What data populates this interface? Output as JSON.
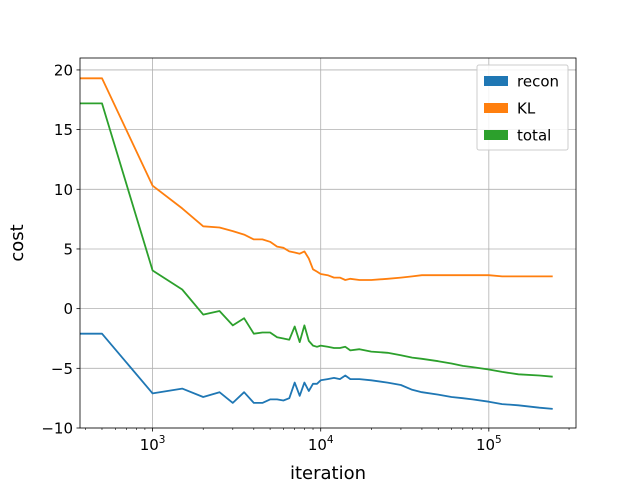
{
  "chart_data": {
    "type": "line",
    "title": "",
    "xlabel": "iteration",
    "ylabel": "cost",
    "xscale": "log",
    "xlim": [
      370,
      330000
    ],
    "ylim": [
      -10,
      21
    ],
    "grid": true,
    "legend_position": "top-right",
    "x_ticks": [
      {
        "value": 1000,
        "base": "10",
        "exp": "3"
      },
      {
        "value": 10000,
        "base": "10",
        "exp": "4"
      },
      {
        "value": 100000,
        "base": "10",
        "exp": "5"
      }
    ],
    "y_ticks": [
      {
        "value": -10,
        "label": "−10"
      },
      {
        "value": -5,
        "label": "−5"
      },
      {
        "value": 0,
        "label": "0"
      },
      {
        "value": 5,
        "label": "5"
      },
      {
        "value": 10,
        "label": "10"
      },
      {
        "value": 15,
        "label": "15"
      },
      {
        "value": 20,
        "label": "20"
      }
    ],
    "series": [
      {
        "name": "recon",
        "color": "#1f77b4",
        "x": [
          370,
          500,
          1000,
          1500,
          2000,
          2500,
          3000,
          3500,
          4000,
          4500,
          5000,
          5500,
          6000,
          6500,
          7000,
          7500,
          8000,
          8500,
          9000,
          9500,
          10000,
          11000,
          12000,
          13000,
          14000,
          15000,
          17000,
          20000,
          25000,
          30000,
          35000,
          40000,
          50000,
          60000,
          70000,
          80000,
          100000,
          120000,
          150000,
          200000,
          240000
        ],
        "y": [
          -2.1,
          -2.1,
          -7.1,
          -6.7,
          -7.4,
          -7.0,
          -7.9,
          -7.0,
          -7.9,
          -7.9,
          -7.6,
          -7.6,
          -7.7,
          -7.5,
          -6.2,
          -7.3,
          -6.2,
          -6.9,
          -6.3,
          -6.3,
          -6.0,
          -5.9,
          -5.8,
          -5.9,
          -5.6,
          -5.9,
          -5.9,
          -6.0,
          -6.2,
          -6.4,
          -6.8,
          -7.0,
          -7.2,
          -7.4,
          -7.5,
          -7.6,
          -7.8,
          -8.0,
          -8.1,
          -8.3,
          -8.4
        ]
      },
      {
        "name": "KL",
        "color": "#ff7f0e",
        "x": [
          370,
          500,
          1000,
          1500,
          2000,
          2500,
          3000,
          3500,
          4000,
          4500,
          5000,
          5500,
          6000,
          6500,
          7000,
          7500,
          8000,
          8500,
          9000,
          9500,
          10000,
          11000,
          12000,
          13000,
          14000,
          15000,
          17000,
          20000,
          25000,
          30000,
          35000,
          40000,
          50000,
          60000,
          70000,
          80000,
          100000,
          120000,
          150000,
          200000,
          240000
        ],
        "y": [
          19.3,
          19.3,
          10.3,
          8.4,
          6.9,
          6.8,
          6.5,
          6.2,
          5.8,
          5.8,
          5.6,
          5.2,
          5.1,
          4.8,
          4.7,
          4.6,
          4.8,
          4.2,
          3.3,
          3.1,
          2.9,
          2.8,
          2.6,
          2.6,
          2.4,
          2.5,
          2.4,
          2.4,
          2.5,
          2.6,
          2.7,
          2.8,
          2.8,
          2.8,
          2.8,
          2.8,
          2.8,
          2.7,
          2.7,
          2.7,
          2.7
        ]
      },
      {
        "name": "total",
        "color": "#2ca02c",
        "x": [
          370,
          500,
          1000,
          1500,
          2000,
          2500,
          3000,
          3500,
          4000,
          4500,
          5000,
          5500,
          6000,
          6500,
          7000,
          7500,
          8000,
          8500,
          9000,
          9500,
          10000,
          11000,
          12000,
          13000,
          14000,
          15000,
          17000,
          20000,
          25000,
          30000,
          35000,
          40000,
          50000,
          60000,
          70000,
          80000,
          100000,
          120000,
          150000,
          200000,
          240000
        ],
        "y": [
          17.2,
          17.2,
          3.2,
          1.6,
          -0.5,
          -0.2,
          -1.4,
          -0.8,
          -2.1,
          -2.0,
          -2.0,
          -2.4,
          -2.5,
          -2.6,
          -1.5,
          -2.8,
          -1.4,
          -2.7,
          -3.1,
          -3.2,
          -3.1,
          -3.2,
          -3.3,
          -3.3,
          -3.2,
          -3.5,
          -3.4,
          -3.6,
          -3.7,
          -3.9,
          -4.1,
          -4.2,
          -4.4,
          -4.6,
          -4.8,
          -4.9,
          -5.1,
          -5.3,
          -5.5,
          -5.6,
          -5.7
        ]
      }
    ]
  }
}
